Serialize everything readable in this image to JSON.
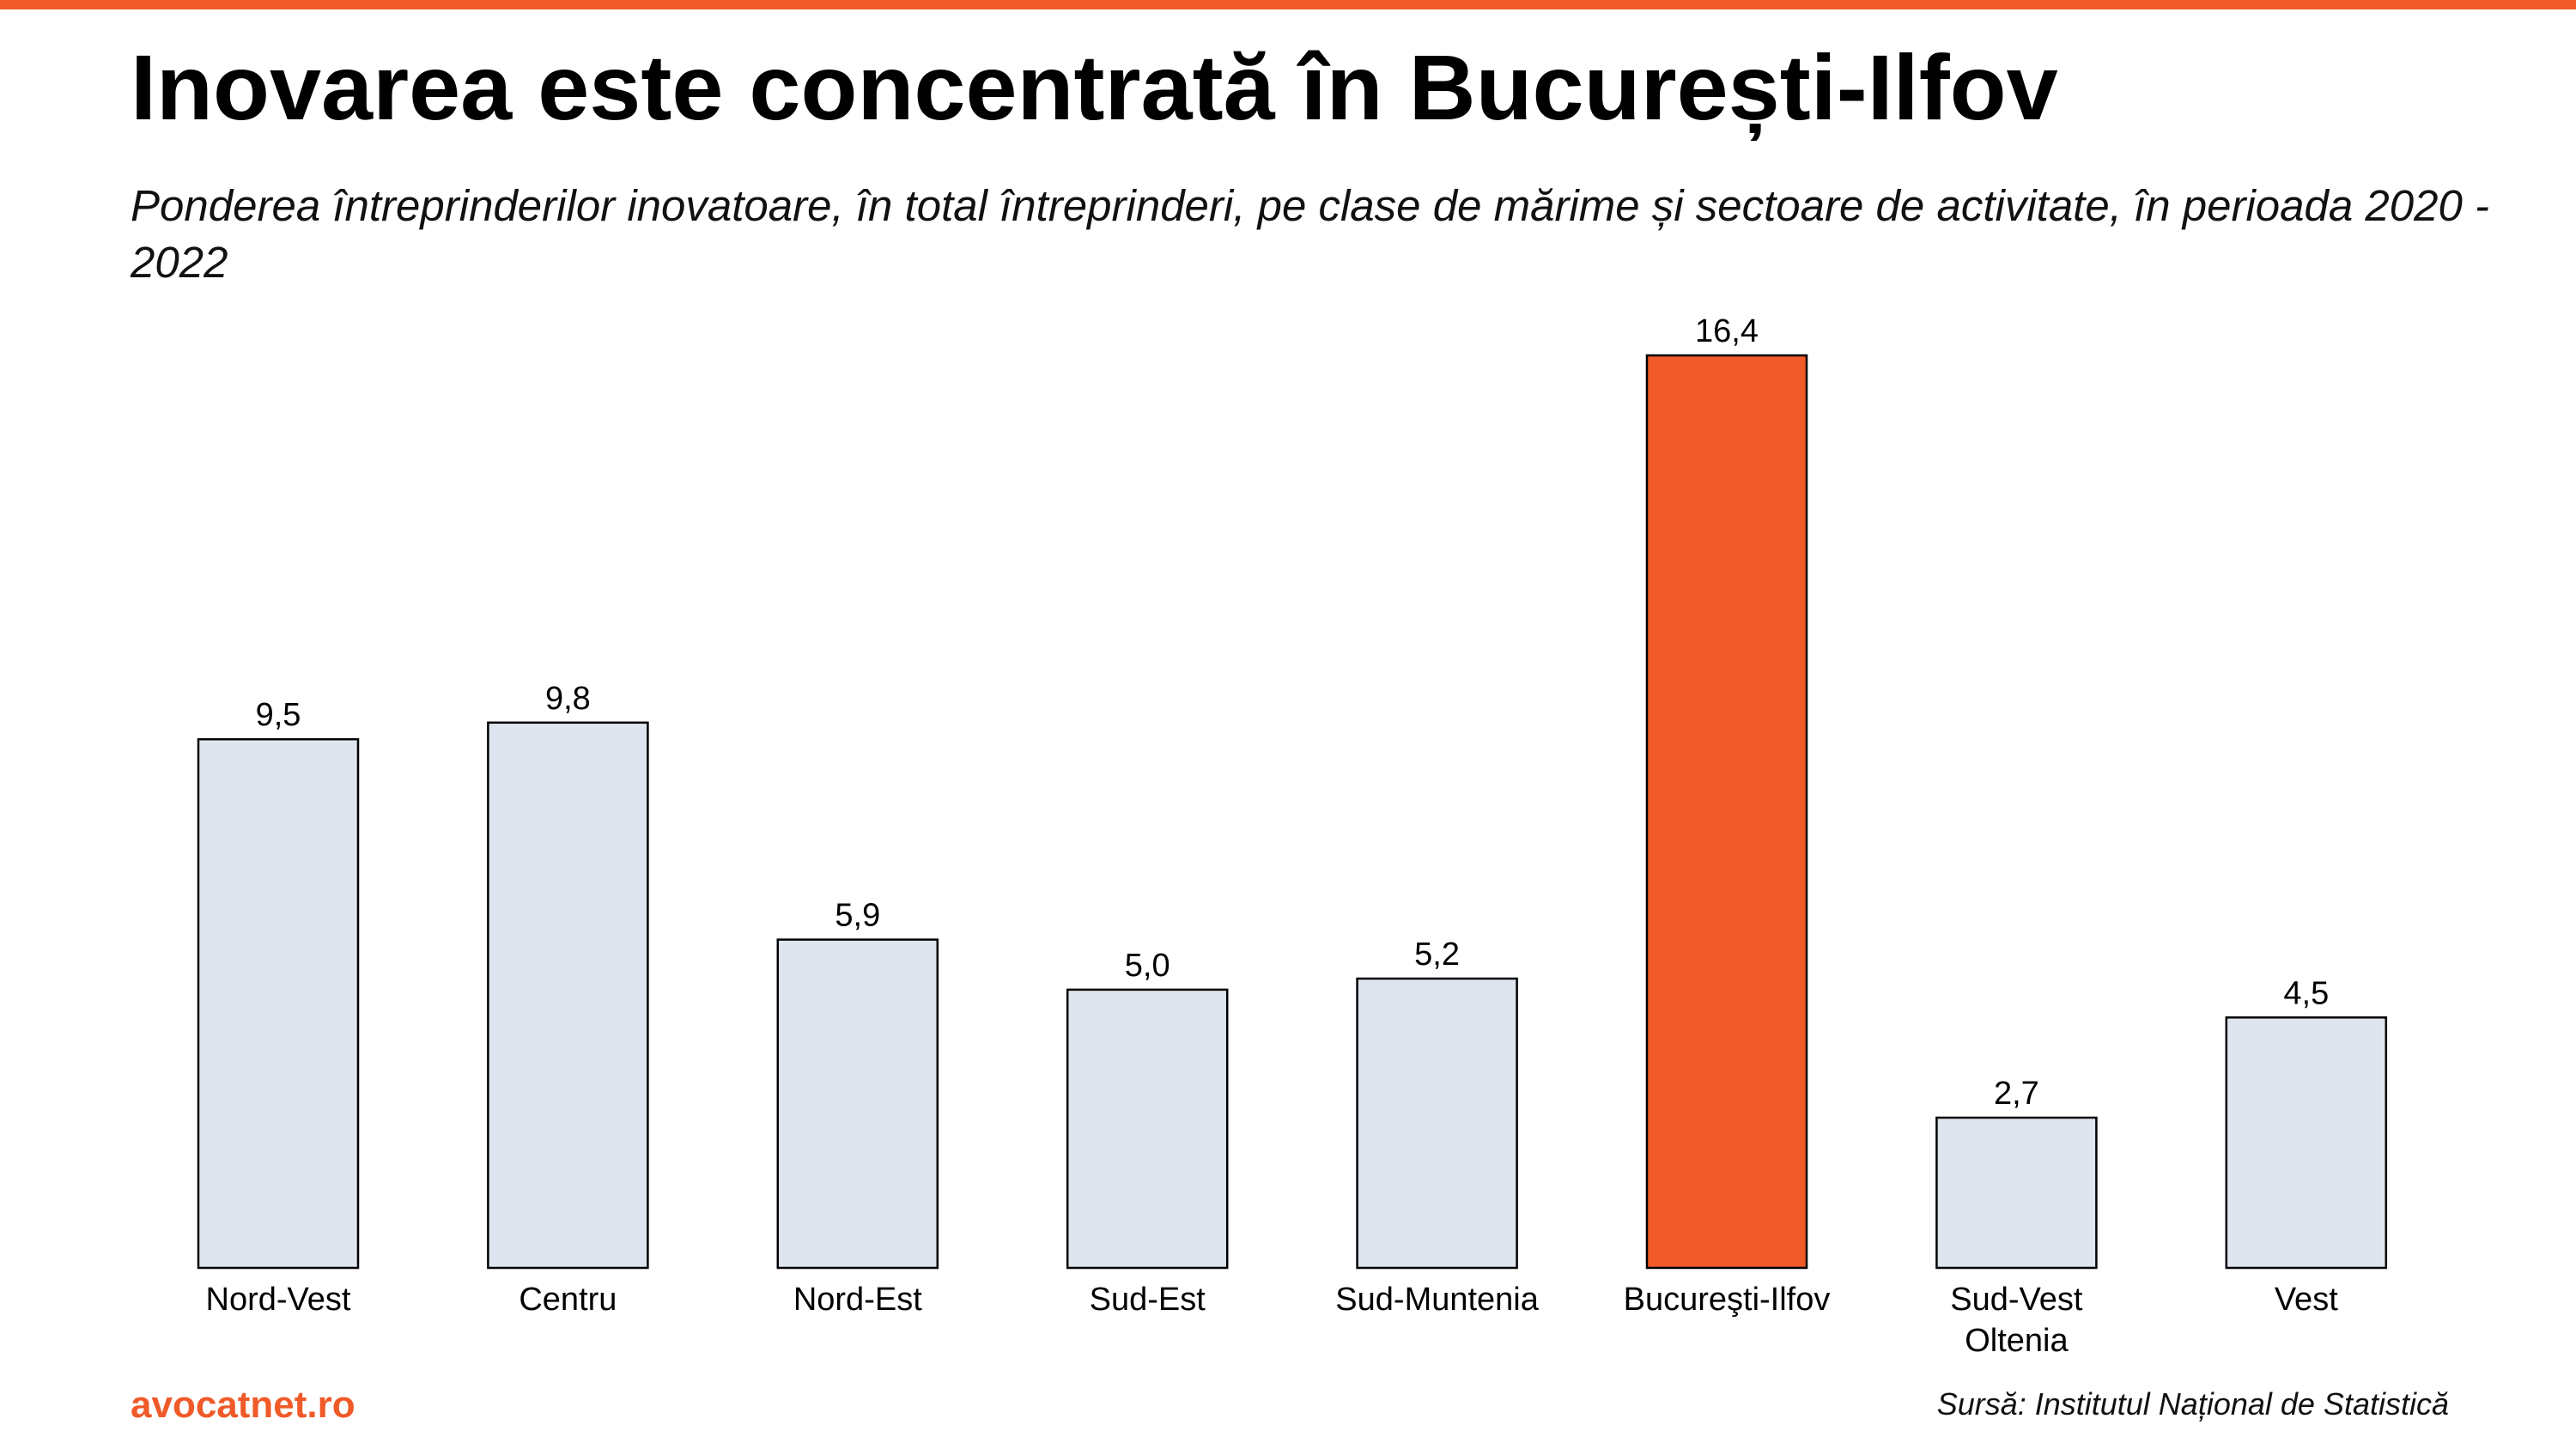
{
  "title": "Inovarea este concentrată în București-Ilfov",
  "subtitle": "Ponderea întreprinderilor inovatoare, în total întreprinderi, pe clase de mărime și sectoare de activitate, în perioada 2020 - 2022",
  "brand": "avocatnet.ro",
  "source": "Sursă: Institutul Național de Statistică",
  "colors": {
    "accent": "#F05A28",
    "bar_default": "#DEE5EE",
    "bar_highlight": "#F05A28",
    "bar_outline": "#000000"
  },
  "chart_data": {
    "type": "bar",
    "categories": [
      "Nord-Vest",
      "Centru",
      "Nord-Est",
      "Sud-Est",
      "Sud-Muntenia",
      "Bucureşti-Ilfov",
      "Sud-Vest Oltenia",
      "Vest"
    ],
    "category_lines": [
      [
        "Nord-Vest"
      ],
      [
        "Centru"
      ],
      [
        "Nord-Est"
      ],
      [
        "Sud-Est"
      ],
      [
        "Sud-Muntenia"
      ],
      [
        "Bucureşti-Ilfov"
      ],
      [
        "Sud-Vest",
        "Oltenia"
      ],
      [
        "Vest"
      ]
    ],
    "values": [
      9.5,
      9.8,
      5.9,
      5.0,
      5.2,
      16.4,
      2.7,
      4.5
    ],
    "value_labels": [
      "9,5",
      "9,8",
      "5,9",
      "5,0",
      "5,2",
      "16,4",
      "2,7",
      "4,5"
    ],
    "highlight": "Bucureşti-Ilfov",
    "ylim": [
      0,
      16.4
    ],
    "grid": false,
    "legend": "none"
  }
}
